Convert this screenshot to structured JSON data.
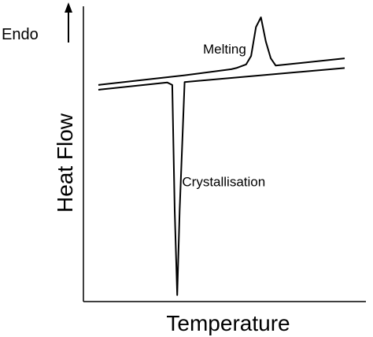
{
  "chart_data": {
    "type": "line",
    "title": "",
    "xlabel": "Temperature",
    "ylabel": "Heat Flow",
    "direction_label": "Endo",
    "grid": false,
    "legend": "none",
    "units": "arbitrary (no numeric ticks shown)",
    "series": [
      {
        "curve": "upper",
        "x": [
          0.0,
          0.35,
          0.54,
          0.56,
          0.6,
          0.62,
          0.64,
          0.66,
          0.68,
          0.7,
          0.72,
          1.0
        ],
        "y": [
          0.72,
          0.76,
          0.785,
          0.79,
          0.805,
          0.84,
          0.96,
          1.0,
          0.9,
          0.83,
          0.8,
          0.83
        ]
      },
      {
        "curve": "lower",
        "x": [
          0.0,
          0.28,
          0.3,
          0.31,
          0.32,
          0.33,
          0.35,
          1.0
        ],
        "y": [
          0.7,
          0.73,
          0.72,
          0.2,
          -0.15,
          0.2,
          0.732,
          0.79
        ]
      }
    ],
    "annotations": [
      {
        "text": "Melting",
        "x": 0.6,
        "y": 0.85
      },
      {
        "text": "Crystallisation",
        "x": 0.34,
        "y": 0.3
      }
    ]
  }
}
